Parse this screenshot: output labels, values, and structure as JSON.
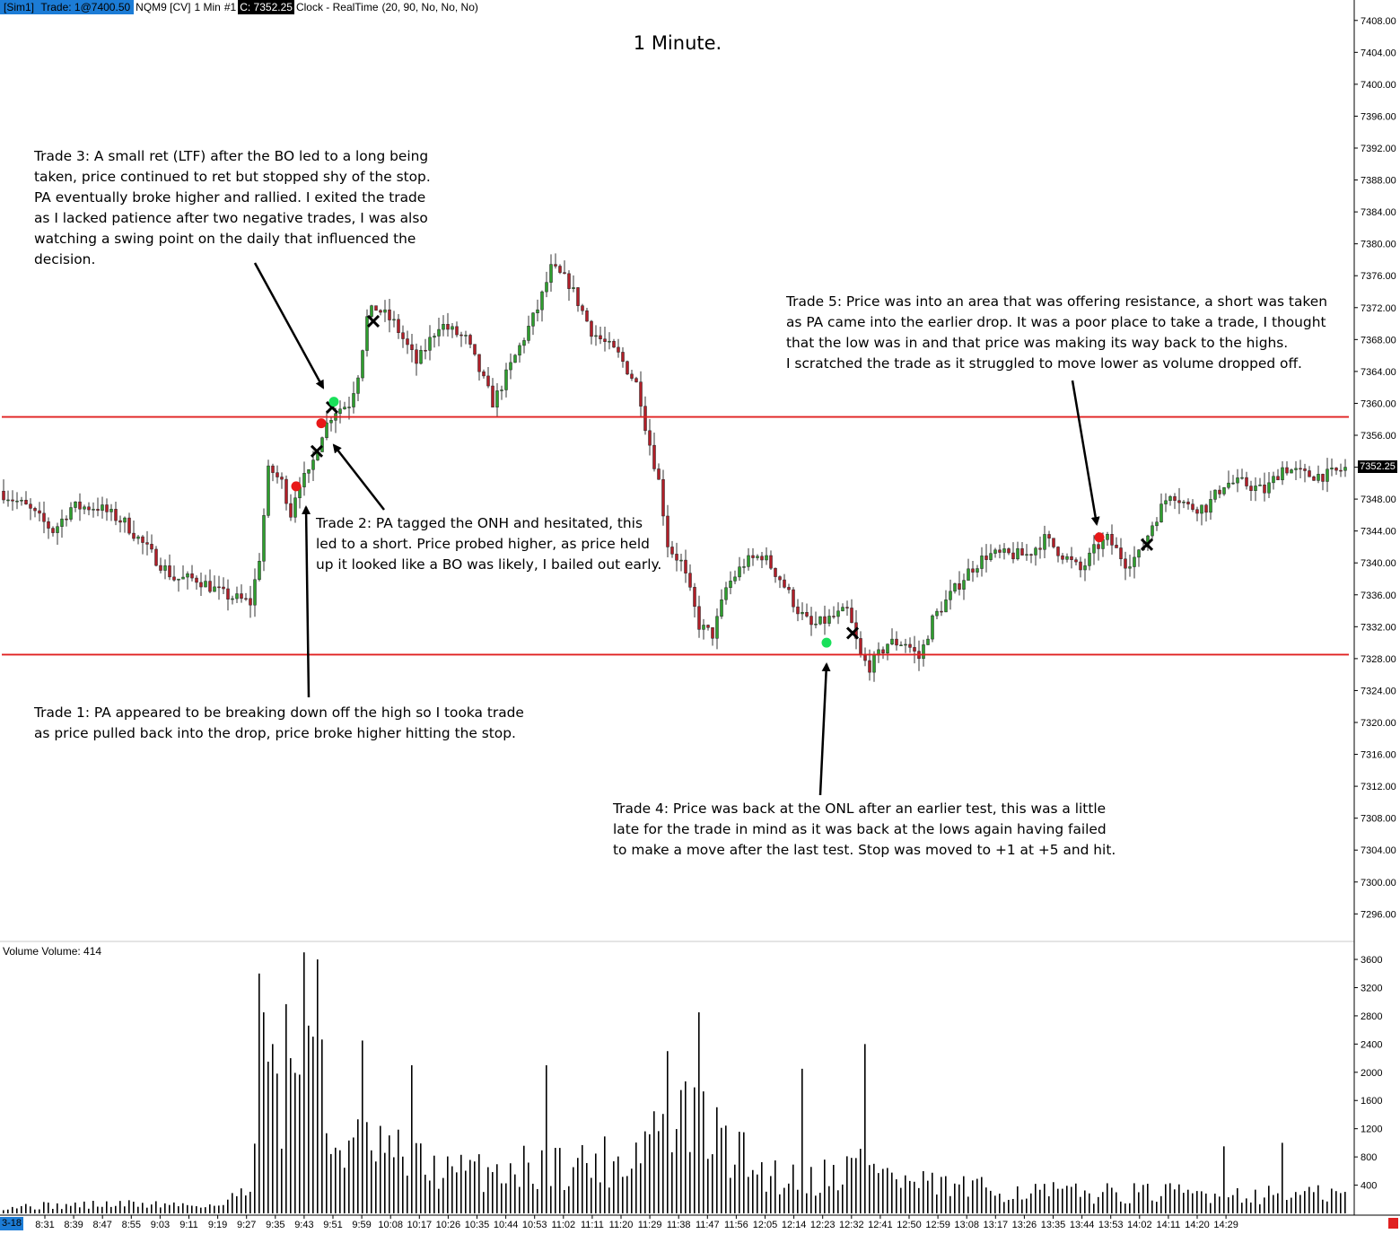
{
  "header": {
    "account": "[Sim1]",
    "trade": "Trade: 1@7400.50",
    "instrument": "NQM9 [CV]",
    "interval": "1 Min",
    "index": "#1",
    "close": "C: 7352.25",
    "clock": "Clock - RealTime",
    "params": "(20, 90, No, No, No)"
  },
  "colors": {
    "up_candle": "#2e9e2e",
    "down_candle": "#b01e28",
    "level_line": "#e02020",
    "header_highlight": "#1c7cd6"
  },
  "notes": {
    "trade1": [
      "Trade 1:  PA appeared to be breaking down off the high so I tooka trade",
      "as price pulled back into the drop, price broke higher hitting the stop."
    ],
    "trade2": [
      "Trade 2:  PA tagged the ONH and hesitated, this",
      "led to a short.  Price probed higher, as price held",
      "up it looked like a BO was likely, I bailed out early."
    ],
    "trade3": [
      "Trade 3:  A small ret (LTF) after the BO led to a long being",
      "taken, price continued to ret but stopped shy of the stop.",
      "PA eventually broke higher and rallied.  I exited the trade",
      "as I lacked patience after two negative trades, I was also",
      "watching a swing point on the daily that influenced the",
      "decision."
    ],
    "trade4": [
      "Trade 4:  Price was back at the ONL after an earlier test, this was a little",
      "late for the trade in mind as it was back at the lows again having failed",
      "to make a move after the last test.  Stop was moved to +1 at +5 and hit."
    ],
    "trade5": [
      "Trade 5:  Price was into an area that was offering resistance, a short was taken",
      "as PA came into the earlier drop.  It was a poor place to take a trade, I thought",
      "that the low was in and that price was making its way back to the highs.",
      "I scratched the trade as it struggled to move lower as volume dropped off."
    ]
  },
  "chart_data": {
    "type": "candlestick",
    "title": "1 Minute.",
    "price_axis": {
      "ylim": [
        7293,
        7410
      ],
      "ticks": [
        7296,
        7300,
        7304,
        7308,
        7312,
        7316,
        7320,
        7324,
        7328,
        7332,
        7336,
        7340,
        7344,
        7348,
        7352,
        7356,
        7360,
        7364,
        7368,
        7372,
        7376,
        7380,
        7384,
        7388,
        7392,
        7396,
        7400,
        7404,
        7408
      ],
      "last_price": "7352.25"
    },
    "volume_axis": {
      "label": "Volume  Volume: 414",
      "ylim": [
        0,
        3700
      ],
      "ticks": [
        400,
        800,
        1200,
        1600,
        2000,
        2400,
        2800,
        3200,
        3600
      ]
    },
    "time_axis": {
      "start_label": "3-18",
      "ticks": [
        "8:31",
        "8:39",
        "8:47",
        "8:55",
        "9:03",
        "9:11",
        "9:19",
        "9:27",
        "9:35",
        "9:43",
        "9:51",
        "9:59",
        "10:08",
        "10:17",
        "10:26",
        "10:35",
        "10:44",
        "10:53",
        "11:02",
        "11:11",
        "11:20",
        "11:29",
        "11:38",
        "11:47",
        "11:56",
        "12:05",
        "12:14",
        "12:23",
        "12:32",
        "12:41",
        "12:50",
        "12:59",
        "13:08",
        "13:17",
        "13:26",
        "13:35",
        "13:44",
        "13:53",
        "14:02",
        "14:11",
        "14:20",
        "14:29"
      ]
    },
    "levels": [
      {
        "name": "ONH",
        "price": 7358.3
      },
      {
        "name": "ONL",
        "price": 7328.5
      }
    ],
    "price_path": [
      [
        0,
        7349
      ],
      [
        30,
        7347
      ],
      [
        60,
        7344
      ],
      [
        80,
        7347
      ],
      [
        110,
        7347
      ],
      [
        140,
        7345
      ],
      [
        170,
        7341
      ],
      [
        195,
        7338
      ],
      [
        220,
        7338
      ],
      [
        250,
        7336
      ],
      [
        280,
        7335
      ],
      [
        290,
        7341
      ],
      [
        300,
        7352
      ],
      [
        315,
        7350
      ],
      [
        325,
        7346
      ],
      [
        332,
        7350
      ],
      [
        345,
        7351
      ],
      [
        358,
        7356
      ],
      [
        372,
        7359
      ],
      [
        390,
        7360
      ],
      [
        400,
        7364
      ],
      [
        410,
        7371
      ],
      [
        420,
        7372
      ],
      [
        440,
        7370
      ],
      [
        465,
        7365
      ],
      [
        490,
        7370
      ],
      [
        520,
        7368
      ],
      [
        550,
        7360
      ],
      [
        575,
        7366
      ],
      [
        600,
        7372
      ],
      [
        615,
        7377
      ],
      [
        635,
        7375
      ],
      [
        660,
        7369
      ],
      [
        690,
        7366
      ],
      [
        712,
        7362
      ],
      [
        720,
        7357
      ],
      [
        735,
        7350
      ],
      [
        745,
        7342
      ],
      [
        760,
        7340
      ],
      [
        780,
        7332
      ],
      [
        795,
        7331
      ],
      [
        810,
        7337
      ],
      [
        830,
        7340
      ],
      [
        850,
        7341
      ],
      [
        870,
        7338
      ],
      [
        890,
        7334
      ],
      [
        905,
        7332
      ],
      [
        925,
        7333
      ],
      [
        945,
        7334
      ],
      [
        960,
        7328
      ],
      [
        970,
        7327
      ],
      [
        990,
        7330
      ],
      [
        1010,
        7330
      ],
      [
        1025,
        7328
      ],
      [
        1040,
        7333
      ],
      [
        1060,
        7336
      ],
      [
        1080,
        7339
      ],
      [
        1100,
        7341
      ],
      [
        1120,
        7341
      ],
      [
        1145,
        7341
      ],
      [
        1165,
        7343
      ],
      [
        1185,
        7341
      ],
      [
        1205,
        7339
      ],
      [
        1222,
        7342
      ],
      [
        1235,
        7343
      ],
      [
        1255,
        7340
      ],
      [
        1270,
        7341
      ],
      [
        1285,
        7345
      ],
      [
        1305,
        7349
      ],
      [
        1325,
        7347
      ],
      [
        1345,
        7347
      ],
      [
        1365,
        7350
      ],
      [
        1385,
        7350
      ],
      [
        1410,
        7349
      ],
      [
        1430,
        7352
      ],
      [
        1455,
        7351
      ],
      [
        1480,
        7351
      ],
      [
        1503,
        7352
      ]
    ],
    "volume_path": [
      [
        0,
        100
      ],
      [
        150,
        140
      ],
      [
        250,
        120
      ],
      [
        278,
        500
      ],
      [
        285,
        2400
      ],
      [
        300,
        1500
      ],
      [
        353,
        3600
      ],
      [
        360,
        1100
      ],
      [
        400,
        1000
      ],
      [
        450,
        800
      ],
      [
        500,
        600
      ],
      [
        600,
        700
      ],
      [
        700,
        800
      ],
      [
        740,
        1500
      ],
      [
        778,
        1300
      ],
      [
        800,
        1100
      ],
      [
        850,
        600
      ],
      [
        900,
        500
      ],
      [
        950,
        700
      ],
      [
        965,
        900
      ],
      [
        1000,
        450
      ],
      [
        1100,
        350
      ],
      [
        1200,
        300
      ],
      [
        1300,
        300
      ],
      [
        1400,
        280
      ],
      [
        1503,
        280
      ]
    ],
    "volume_spikes": [
      [
        286,
        3400
      ],
      [
        292,
        2850
      ],
      [
        303,
        2400
      ],
      [
        322,
        2200
      ],
      [
        353,
        3600
      ],
      [
        405,
        2450
      ],
      [
        457,
        2100
      ],
      [
        608,
        2100
      ],
      [
        741,
        2300
      ],
      [
        778,
        2850
      ],
      [
        893,
        2050
      ],
      [
        962,
        2400
      ],
      [
        1363,
        950
      ],
      [
        1430,
        1000
      ]
    ],
    "trade_markers": [
      {
        "trade": "Trade 1",
        "kind": "entry",
        "side": "short",
        "bar": 330,
        "price": 7349.6
      },
      {
        "trade": "Trade 1",
        "kind": "exit",
        "bar": 353,
        "price": 7354.0
      },
      {
        "trade": "Trade 2",
        "kind": "entry",
        "side": "short",
        "bar": 358,
        "price": 7357.5
      },
      {
        "trade": "Trade 2",
        "kind": "exit",
        "bar": 370,
        "price": 7359.5
      },
      {
        "trade": "Trade 3",
        "kind": "entry",
        "side": "long",
        "bar": 372,
        "price": 7360.2
      },
      {
        "trade": "Trade 3",
        "kind": "exit",
        "bar": 416,
        "price": 7370.3
      },
      {
        "trade": "Trade 4",
        "kind": "entry",
        "side": "long",
        "bar": 921,
        "price": 7330.0
      },
      {
        "trade": "Trade 4",
        "kind": "exit",
        "bar": 950,
        "price": 7331.2
      },
      {
        "trade": "Trade 5",
        "kind": "entry",
        "side": "short",
        "bar": 1225,
        "price": 7343.2
      },
      {
        "trade": "Trade 5",
        "kind": "exit",
        "bar": 1278,
        "price": 7342.3
      }
    ]
  }
}
